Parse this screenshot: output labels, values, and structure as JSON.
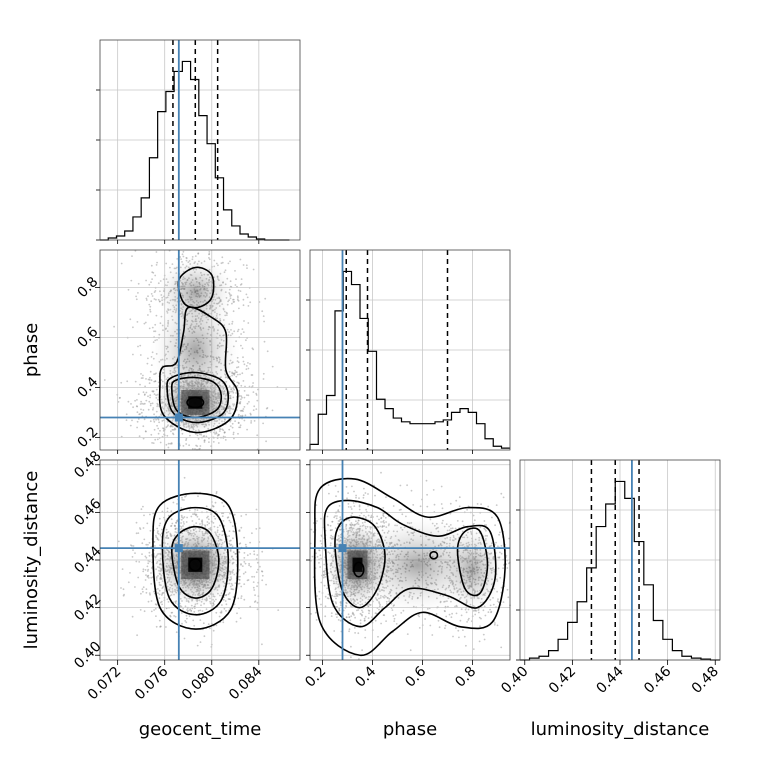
{
  "chart_data": {
    "type": "corner",
    "parameters": [
      {
        "name": "geocent_time",
        "range": [
          0.0705,
          0.0875
        ],
        "ticks": [
          0.072,
          0.076,
          0.08,
          0.084
        ],
        "tick_labels": [
          "0.072",
          "0.076",
          "0.080",
          "0.084"
        ],
        "truth": 0.0772,
        "quantiles": [
          0.0767,
          0.0786,
          0.0805
        ]
      },
      {
        "name": "phase",
        "range": [
          0.15,
          0.95
        ],
        "ticks": [
          0.2,
          0.4,
          0.6,
          0.8
        ],
        "tick_labels": [
          "0.2",
          "0.4",
          "0.6",
          "0.8"
        ],
        "truth": 0.28,
        "quantiles": [
          0.295,
          0.38,
          0.7
        ]
      },
      {
        "name": "luminosity_distance",
        "range": [
          0.398,
          0.482
        ],
        "ticks": [
          0.4,
          0.42,
          0.44,
          0.46,
          0.48
        ],
        "tick_labels": [
          "0.40",
          "0.42",
          "0.44",
          "0.46",
          "0.48"
        ],
        "truth": 0.445,
        "quantiles": [
          0.428,
          0.438,
          0.448
        ]
      }
    ],
    "histograms": [
      {
        "param": "geocent_time",
        "bins_x": [
          0.0705,
          0.0712,
          0.0719,
          0.0726,
          0.0733,
          0.074,
          0.0747,
          0.0754,
          0.0761,
          0.0768,
          0.0775,
          0.0782,
          0.0789,
          0.0796,
          0.0803,
          0.081,
          0.0817,
          0.0824,
          0.0831,
          0.0838,
          0.0845,
          0.0852,
          0.0859,
          0.0866
        ],
        "counts": [
          0,
          2,
          4,
          9,
          23,
          42,
          82,
          128,
          148,
          168,
          178,
          160,
          124,
          96,
          62,
          30,
          14,
          6,
          3,
          1,
          0,
          0,
          0
        ]
      },
      {
        "param": "phase",
        "bins_x": [
          0.15,
          0.183,
          0.216,
          0.25,
          0.283,
          0.316,
          0.35,
          0.383,
          0.416,
          0.45,
          0.483,
          0.516,
          0.55,
          0.583,
          0.616,
          0.65,
          0.683,
          0.716,
          0.75,
          0.783,
          0.816,
          0.85,
          0.883,
          0.916,
          0.95
        ],
        "counts": [
          6,
          38,
          58,
          148,
          190,
          176,
          140,
          105,
          54,
          44,
          34,
          30,
          28,
          28,
          28,
          30,
          32,
          40,
          44,
          40,
          28,
          12,
          4,
          2
        ]
      },
      {
        "param": "luminosity_distance",
        "bins_x": [
          0.398,
          0.402,
          0.406,
          0.41,
          0.414,
          0.418,
          0.422,
          0.426,
          0.43,
          0.434,
          0.438,
          0.442,
          0.446,
          0.45,
          0.454,
          0.458,
          0.462,
          0.466,
          0.47,
          0.474,
          0.478,
          0.482
        ],
        "counts": [
          0,
          2,
          4,
          10,
          22,
          40,
          62,
          98,
          142,
          166,
          190,
          172,
          126,
          80,
          42,
          22,
          10,
          4,
          2,
          1,
          0
        ]
      }
    ],
    "pairs": [
      {
        "x": "geocent_time",
        "y": "phase"
      },
      {
        "x": "geocent_time",
        "y": "luminosity_distance"
      },
      {
        "x": "phase",
        "y": "luminosity_distance"
      }
    ],
    "truths_color": "#4682b4"
  }
}
